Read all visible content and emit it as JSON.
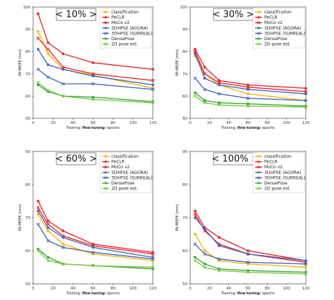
{
  "chart_data": [
    {
      "type": "line",
      "title": "< 10% >",
      "xlabel_prefix": "Training (",
      "xlabel_bold": "fine-tuning",
      "xlabel_suffix": ") epochs",
      "ylabel": "PA-MPJPE (mm)",
      "xlim": [
        0,
        120
      ],
      "ylim": [
        50,
        100
      ],
      "xticks": [
        "0",
        "20",
        "40",
        "60",
        "80",
        "100",
        "120"
      ],
      "yticks": [
        "50",
        "60",
        "70",
        "80",
        "90",
        "100"
      ],
      "legend_position": "top-right",
      "series": [
        {
          "name": "classification",
          "color": "#f5b800",
          "x": [
            5,
            15,
            30,
            60,
            120
          ],
          "y": [
            89,
            79,
            72,
            69.5,
            63.5
          ]
        },
        {
          "name": "PeCLR",
          "color": "#e8282b",
          "x": [
            5,
            15,
            30,
            60,
            120
          ],
          "y": [
            97,
            84,
            79,
            75,
            72
          ]
        },
        {
          "name": "MoCo v2",
          "color": "#e8282b",
          "x": [
            5,
            15,
            30,
            60,
            120
          ],
          "y": [
            86,
            81,
            73,
            70,
            67
          ]
        },
        {
          "name": "3DHPSE (AGORA)",
          "color": "#4468c4",
          "x": [
            5,
            15,
            30,
            60,
            120
          ],
          "y": [
            81,
            74,
            72,
            69,
            65
          ]
        },
        {
          "name": "3DHPSE (SURREAL)",
          "color": "#4468c4",
          "x": [
            5,
            15,
            30,
            60,
            120
          ],
          "y": [
            72,
            68.5,
            65.5,
            65.5,
            63
          ]
        },
        {
          "name": "DensePose",
          "color": "#3aa83a",
          "x": [
            5,
            15,
            30,
            60,
            120
          ],
          "y": [
            65,
            62,
            60,
            59.5,
            57.5
          ]
        },
        {
          "name": "2D pose est.",
          "color": "#7ac943",
          "x": [
            5,
            15,
            30,
            60,
            120
          ],
          "y": [
            66,
            62.5,
            60,
            58.5,
            57
          ]
        }
      ]
    },
    {
      "type": "line",
      "title": "< 30% >",
      "xlabel_prefix": "Training (",
      "xlabel_bold": "fine-tuning",
      "xlabel_suffix": ") epochs",
      "ylabel": "PA-MPJPE (mm)",
      "xlim": [
        0,
        120
      ],
      "ylim": [
        50,
        100
      ],
      "xticks": [
        "0",
        "20",
        "40",
        "60",
        "80",
        "100",
        "120"
      ],
      "yticks": [
        "50",
        "60",
        "70",
        "80",
        "90",
        "100"
      ],
      "legend_position": "top-right",
      "series": [
        {
          "name": "classification",
          "color": "#f5b800",
          "x": [
            5,
            15,
            30,
            60,
            120
          ],
          "y": [
            78,
            70,
            65,
            61,
            58
          ]
        },
        {
          "name": "PeCLR",
          "color": "#e8282b",
          "x": [
            5,
            15,
            30,
            60,
            120
          ],
          "y": [
            81,
            73,
            67,
            65,
            63.5
          ]
        },
        {
          "name": "MoCo v2",
          "color": "#e8282b",
          "x": [
            5,
            15,
            30,
            60,
            120
          ],
          "y": [
            80,
            70,
            66,
            64,
            62
          ]
        },
        {
          "name": "3DHPSE (AGORA)",
          "color": "#4468c4",
          "x": [
            5,
            15,
            30,
            60,
            120
          ],
          "y": [
            79,
            68,
            65,
            63,
            61
          ]
        },
        {
          "name": "3DHPSE (SURREAL)",
          "color": "#4468c4",
          "x": [
            5,
            15,
            30,
            60,
            120
          ],
          "y": [
            68,
            63,
            61,
            59,
            58
          ]
        },
        {
          "name": "DensePose",
          "color": "#3aa83a",
          "x": [
            5,
            15,
            30,
            60,
            120
          ],
          "y": [
            61.5,
            58,
            57,
            56.5,
            55.5
          ]
        },
        {
          "name": "2D pose est.",
          "color": "#7ac943",
          "x": [
            5,
            15,
            30,
            60,
            120
          ],
          "y": [
            60,
            57,
            56,
            55.5,
            55
          ]
        }
      ]
    },
    {
      "type": "line",
      "title": "< 60% >",
      "xlabel_prefix": "Training (",
      "xlabel_bold": "fine-tuning",
      "xlabel_suffix": ") epochs",
      "ylabel": "PA-MPJPE (mm)",
      "xlim": [
        0,
        120
      ],
      "ylim": [
        50,
        90
      ],
      "xticks": [
        "0",
        "20",
        "40",
        "60",
        "80",
        "100",
        "120"
      ],
      "yticks": [
        "50",
        "60",
        "70",
        "80",
        "90"
      ],
      "legend_position": "top-right",
      "series": [
        {
          "name": "classification",
          "color": "#f5b800",
          "x": [
            5,
            15,
            30,
            60,
            120
          ],
          "y": [
            71,
            66,
            62,
            59,
            57
          ]
        },
        {
          "name": "PeCLR",
          "color": "#e8282b",
          "x": [
            5,
            15,
            30,
            60,
            120
          ],
          "y": [
            75,
            69,
            66,
            62,
            59.5
          ]
        },
        {
          "name": "MoCo v2",
          "color": "#e8282b",
          "x": [
            5,
            15,
            30,
            60,
            120
          ],
          "y": [
            73,
            68,
            64.5,
            61.5,
            59
          ]
        },
        {
          "name": "3DHPSE (AGORA)",
          "color": "#4468c4",
          "x": [
            5,
            15,
            30,
            60,
            120
          ],
          "y": [
            72,
            67,
            64,
            61,
            58
          ]
        },
        {
          "name": "3DHPSE (SURREAL)",
          "color": "#4468c4",
          "x": [
            5,
            15,
            30,
            60,
            120
          ],
          "y": [
            68,
            63,
            61,
            59.5,
            57.5
          ]
        },
        {
          "name": "DensePose",
          "color": "#3aa83a",
          "x": [
            5,
            15,
            30,
            60,
            120
          ],
          "y": [
            60.5,
            58,
            56,
            55.5,
            54.5
          ]
        },
        {
          "name": "2D pose est.",
          "color": "#7ac943",
          "x": [
            5,
            15,
            30,
            60,
            120
          ],
          "y": [
            60,
            57,
            56,
            55.5,
            55
          ]
        }
      ]
    },
    {
      "type": "line",
      "title": "< 100% >",
      "xlabel_prefix": "Training (",
      "xlabel_bold": "fine-tuning",
      "xlabel_suffix": ") epochs",
      "ylabel": "PA-MPJPE (mm)",
      "xlim": [
        0,
        120
      ],
      "ylim": [
        50,
        90
      ],
      "xticks": [
        "0",
        "20",
        "40",
        "60",
        "80",
        "100",
        "120"
      ],
      "yticks": [
        "50",
        "60",
        "70",
        "80",
        "90"
      ],
      "legend_position": "top-right",
      "series": [
        {
          "name": "classification",
          "color": "#f5b800",
          "x": [
            5,
            15,
            30,
            60,
            120
          ],
          "y": [
            65,
            60,
            57,
            56,
            55
          ]
        },
        {
          "name": "PeCLR",
          "color": "#e8282b",
          "x": [
            5,
            15,
            30,
            60,
            120
          ],
          "y": [
            72,
            67,
            64,
            60,
            57
          ]
        },
        {
          "name": "MoCo v2",
          "color": "#e8282b",
          "x": [
            5,
            15,
            30,
            60,
            120
          ],
          "y": [
            71,
            66,
            62,
            59,
            56.5
          ]
        },
        {
          "name": "3DHPSE (AGORA)",
          "color": "#4468c4",
          "x": [
            5,
            15,
            30,
            60,
            120
          ],
          "y": [
            70,
            66.5,
            61.5,
            59,
            57
          ]
        },
        {
          "name": "3DHPSE (SURREAL)",
          "color": "#4468c4",
          "x": [
            5,
            15,
            30,
            60,
            120
          ],
          "y": [
            62,
            59,
            57.5,
            56.5,
            56
          ]
        },
        {
          "name": "DensePose",
          "color": "#3aa83a",
          "x": [
            5,
            15,
            30,
            60,
            120
          ],
          "y": [
            58,
            56,
            54.5,
            54,
            53.5
          ]
        },
        {
          "name": "2D pose est.",
          "color": "#7ac943",
          "x": [
            5,
            15,
            30,
            60,
            120
          ],
          "y": [
            57,
            55,
            54,
            53.5,
            53
          ]
        }
      ]
    }
  ]
}
